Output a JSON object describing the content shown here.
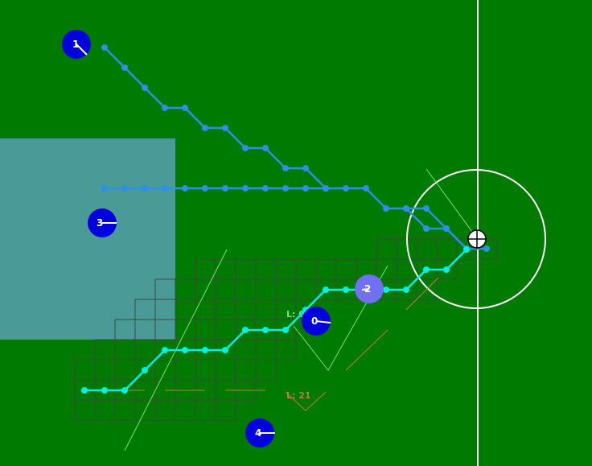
{
  "colors": {
    "field": "#007a00",
    "line": "#ffffff",
    "zone": "#4a9a98",
    "grid": "#3a4a3a",
    "team": "#0000dd",
    "team_highlight": "#7070f0",
    "path_upper": "#2a90e8",
    "path_lower": "#00f0e8",
    "debug_green": "#7fdf70",
    "debug_orange": "#c07848"
  },
  "players": [
    {
      "id": "1"
    },
    {
      "id": "3"
    },
    {
      "id": "0"
    },
    {
      "id": "2"
    },
    {
      "id": "4"
    }
  ],
  "labels": {
    "lower_debug": "L: 21",
    "upper_debug": "L: 0"
  },
  "icons": {
    "ball": "soccer-ball-icon"
  }
}
